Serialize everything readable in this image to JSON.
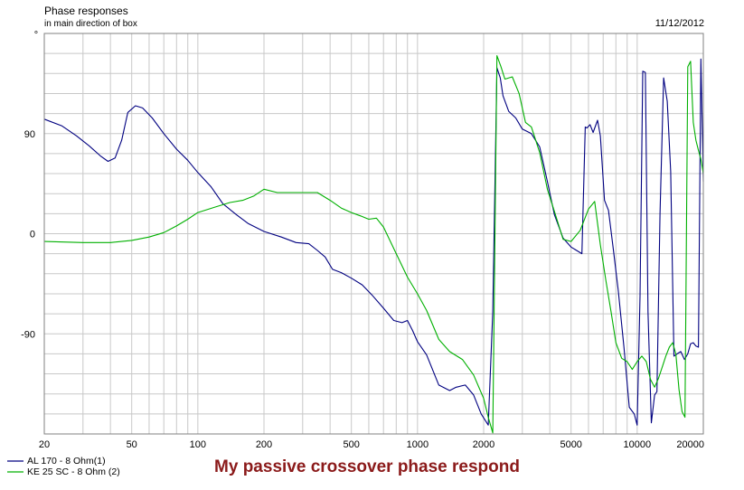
{
  "chart_data": {
    "type": "line",
    "title": "Phase responses",
    "subtitle": "in main direction of box",
    "date": "11/12/2012",
    "caption": "My passive crossover phase respond",
    "y_unit": "°",
    "xscale": "log",
    "xlim": [
      20,
      20000
    ],
    "ylim": [
      -180,
      180
    ],
    "xticks": [
      {
        "v": 20,
        "label": "20"
      },
      {
        "v": 50,
        "label": "50"
      },
      {
        "v": 100,
        "label": "100"
      },
      {
        "v": 200,
        "label": "200"
      },
      {
        "v": 500,
        "label": "500"
      },
      {
        "v": 1000,
        "label": "1000"
      },
      {
        "v": 2000,
        "label": "2000"
      },
      {
        "v": 5000,
        "label": "5000"
      },
      {
        "v": 10000,
        "label": "10000"
      },
      {
        "v": 20000,
        "label": "20000"
      }
    ],
    "yticks": [
      {
        "v": 90,
        "label": "90"
      },
      {
        "v": 0,
        "label": "0"
      },
      {
        "v": -90,
        "label": "-90"
      }
    ],
    "grid": true,
    "legend_position": "bottom-left",
    "series": [
      {
        "name": "AL 170 - 8 Ohm(1)",
        "color": "#000080",
        "x": [
          20,
          24,
          28,
          32,
          36,
          39,
          42,
          45,
          48,
          52,
          56,
          62,
          70,
          80,
          90,
          100,
          115,
          130,
          150,
          170,
          200,
          240,
          280,
          320,
          350,
          380,
          410,
          450,
          500,
          560,
          620,
          700,
          780,
          850,
          900,
          950,
          1000,
          1100,
          1250,
          1400,
          1500,
          1650,
          1800,
          1950,
          2100,
          2200,
          2300,
          2380,
          2450,
          2600,
          2800,
          3000,
          3300,
          3600,
          3900,
          4200,
          4600,
          5000,
          5300,
          5600,
          5800,
          5900,
          6100,
          6300,
          6600,
          6800,
          7100,
          7400,
          7800,
          8200,
          8700,
          9200,
          9700,
          10000,
          10300,
          10600,
          10900,
          11200,
          11600,
          12000,
          12300,
          12700,
          13200,
          13700,
          14200,
          14700,
          15200,
          15800,
          16400,
          17000,
          17500,
          18000,
          18500,
          19000,
          19500,
          20000
        ],
        "y": [
          103,
          97,
          88,
          79,
          70,
          65,
          68,
          84,
          109,
          115,
          113,
          104,
          90,
          76,
          66,
          55,
          42,
          27,
          17,
          9,
          2,
          -3,
          -8,
          -9,
          -15,
          -21,
          -32,
          -35,
          -40,
          -46,
          -55,
          -67,
          -78,
          -80,
          -78,
          -87,
          -97,
          -109,
          -136,
          -141,
          -138,
          -136,
          -145,
          -162,
          -172,
          -70,
          149,
          140,
          124,
          110,
          104,
          94,
          90,
          78,
          47,
          17,
          -4,
          -12,
          -15,
          -18,
          96,
          95,
          98,
          91,
          102,
          88,
          30,
          21,
          -15,
          -51,
          -102,
          -156,
          -162,
          -172,
          -56,
          146,
          145,
          -70,
          -170,
          -145,
          -142,
          18,
          140,
          119,
          56,
          -110,
          -108,
          -106,
          -113,
          -108,
          -99,
          -98,
          -101,
          -102,
          157,
          47
        ]
      },
      {
        "name": "KE 25 SC - 8 Ohm  (2)",
        "color": "#00b000",
        "x": [
          20,
          30,
          40,
          50,
          60,
          70,
          80,
          90,
          100,
          120,
          140,
          160,
          180,
          200,
          230,
          260,
          300,
          350,
          400,
          450,
          500,
          550,
          600,
          650,
          700,
          800,
          900,
          1000,
          1100,
          1250,
          1400,
          1600,
          1800,
          2000,
          2100,
          2200,
          2300,
          2400,
          2500,
          2700,
          2900,
          3100,
          3300,
          3600,
          3900,
          4200,
          4600,
          5000,
          5500,
          6000,
          6400,
          6800,
          7200,
          7600,
          8000,
          8500,
          9000,
          9500,
          10000,
          10500,
          11000,
          11500,
          12000,
          12500,
          13000,
          13500,
          14000,
          14500,
          15000,
          15500,
          16000,
          16500,
          17000,
          17500,
          18000,
          18500,
          19000,
          19500,
          20000
        ],
        "y": [
          -7,
          -8,
          -8,
          -6,
          -3,
          1,
          7,
          13,
          19,
          24,
          28,
          30,
          34,
          40,
          37,
          37,
          37,
          37,
          30,
          23,
          19,
          16,
          13,
          14,
          6,
          -18,
          -39,
          -54,
          -69,
          -95,
          -106,
          -113,
          -127,
          -148,
          -165,
          -179,
          160,
          150,
          139,
          141,
          126,
          100,
          96,
          73,
          40,
          20,
          -5,
          -7,
          3,
          22,
          29,
          -10,
          -42,
          -70,
          -98,
          -112,
          -115,
          -122,
          -115,
          -110,
          -115,
          -131,
          -138,
          -130,
          -120,
          -110,
          -102,
          -98,
          -108,
          -140,
          -160,
          -165,
          150,
          155,
          100,
          84,
          75,
          67,
          54
        ]
      }
    ]
  }
}
